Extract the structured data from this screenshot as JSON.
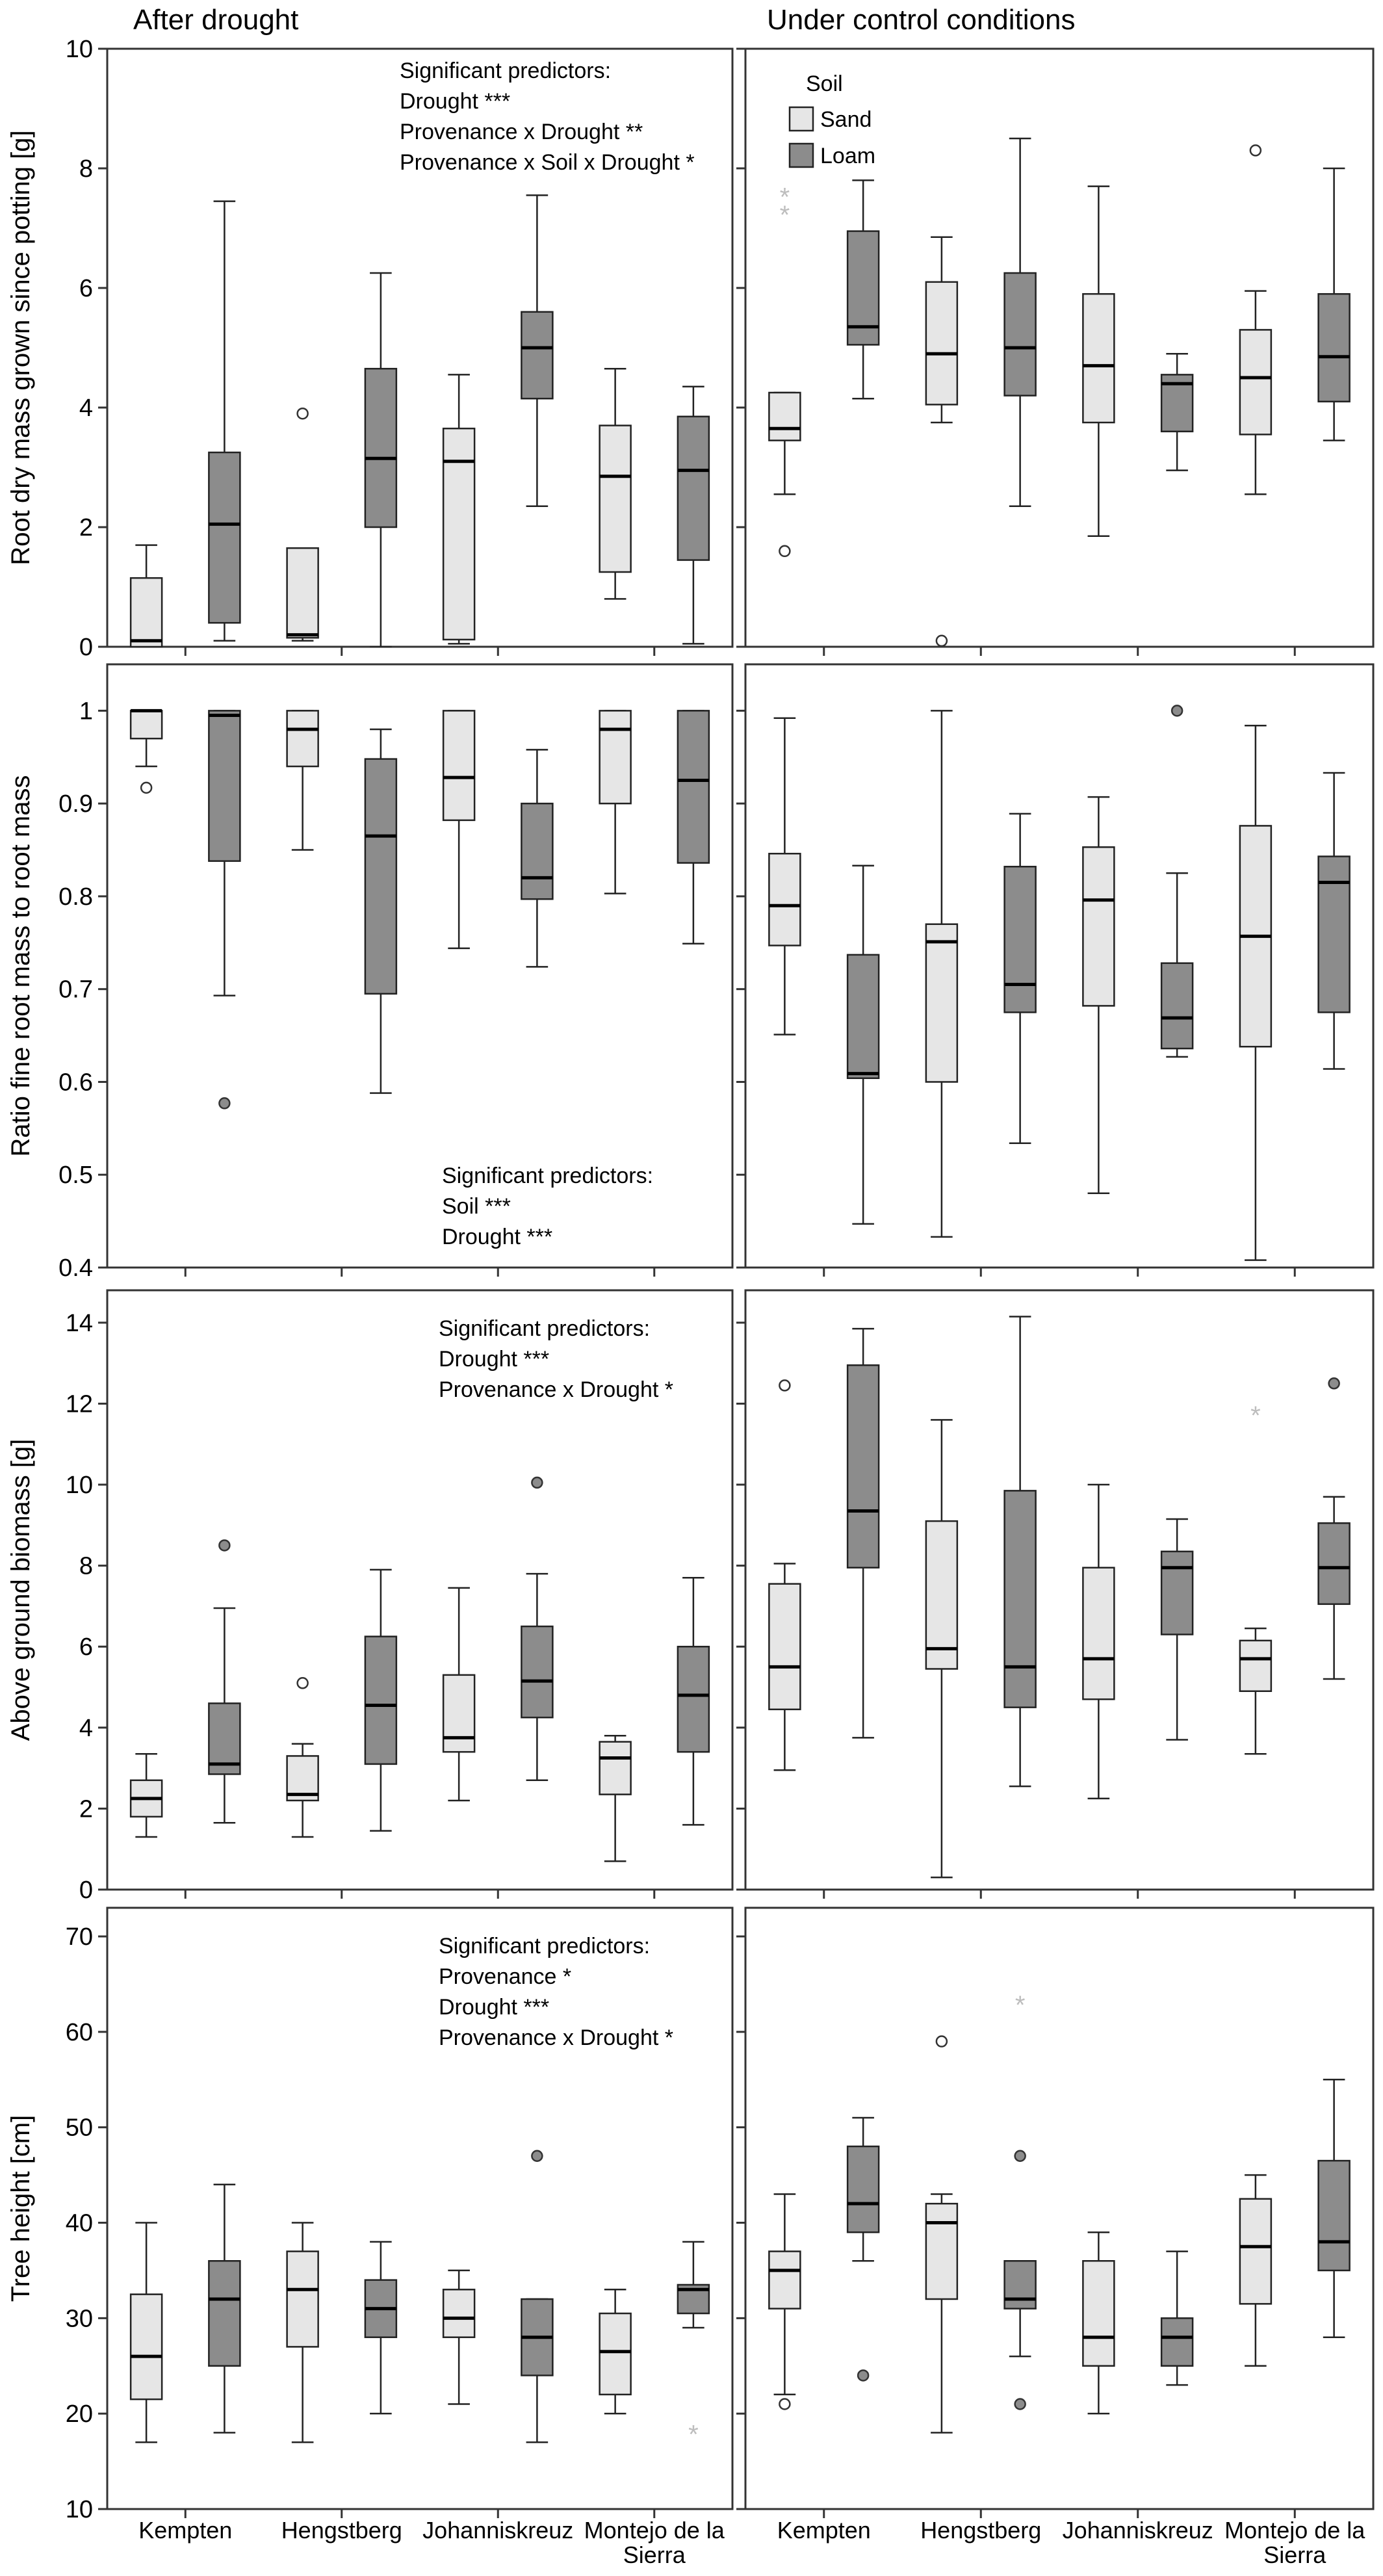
{
  "headers": {
    "left": "After drought",
    "right": "Under control conditions"
  },
  "legend": {
    "title": "Soil",
    "items": [
      {
        "label": "Sand",
        "color": "#e6e6e6"
      },
      {
        "label": "Loam",
        "color": "#8c8c8c"
      }
    ]
  },
  "categories": [
    "Kempten",
    "Hengstberg",
    "Johanniskreuz",
    "Montejo de la Sierra"
  ],
  "colors": {
    "sand": "#e6e6e6",
    "loam": "#8c8c8c",
    "frame": "#333333"
  },
  "chart_data": [
    {
      "type": "box",
      "ylabel": "Root dry mass grown since potting [g]",
      "ylim": [
        0,
        10
      ],
      "ticks": [
        0,
        2,
        4,
        6,
        8,
        10
      ],
      "annotations": [
        "Significant predictors:",
        "Drought ***",
        "Provenance x Drought **",
        "Provenance x Soil x Drought *"
      ],
      "annotation_panel": "drought",
      "drought": [
        [
          {
            "min": 0,
            "q1": 0,
            "med": 0.1,
            "q3": 1.15,
            "max": 1.7,
            "out": []
          },
          {
            "min": 0.1,
            "q1": 0.4,
            "med": 2.05,
            "q3": 3.25,
            "max": 7.45,
            "out": []
          }
        ],
        [
          {
            "min": 0.1,
            "q1": 0.15,
            "med": 0.2,
            "q3": 1.65,
            "max": 1.65,
            "out": [
              3.9
            ]
          },
          {
            "min": 0,
            "q1": 2,
            "med": 3.15,
            "q3": 4.65,
            "max": 6.25,
            "out": []
          }
        ],
        [
          {
            "min": 0.05,
            "q1": 0.12,
            "med": 3.1,
            "q3": 3.65,
            "max": 4.55,
            "out": []
          },
          {
            "min": 2.35,
            "q1": 4.15,
            "med": 5,
            "q3": 5.6,
            "max": 7.55,
            "out": []
          }
        ],
        [
          {
            "min": 0.8,
            "q1": 1.25,
            "med": 2.85,
            "q3": 3.7,
            "max": 4.65,
            "out": []
          },
          {
            "min": 0.05,
            "q1": 1.45,
            "med": 2.95,
            "q3": 3.85,
            "max": 4.35,
            "out": []
          }
        ]
      ],
      "control": [
        [
          {
            "min": 2.55,
            "q1": 3.45,
            "med": 3.65,
            "q3": 4.25,
            "max": 4.25,
            "out": [
              1.6
            ],
            "star": [
              7.25,
              7.55
            ]
          },
          {
            "min": 4.15,
            "q1": 5.05,
            "med": 5.35,
            "q3": 6.95,
            "max": 7.8,
            "out": []
          }
        ],
        [
          {
            "min": 3.75,
            "q1": 4.05,
            "med": 4.9,
            "q3": 6.1,
            "max": 6.85,
            "out": [
              0.1
            ]
          },
          {
            "min": 2.35,
            "q1": 4.2,
            "med": 5,
            "q3": 6.25,
            "max": 8.5,
            "out": []
          }
        ],
        [
          {
            "min": 1.85,
            "q1": 3.75,
            "med": 4.7,
            "q3": 5.9,
            "max": 7.7,
            "out": []
          },
          {
            "min": 2.95,
            "q1": 3.6,
            "med": 4.4,
            "q3": 4.55,
            "max": 4.9,
            "out": []
          }
        ],
        [
          {
            "min": 2.55,
            "q1": 3.55,
            "med": 4.5,
            "q3": 5.3,
            "max": 5.95,
            "out": [
              8.3
            ]
          },
          {
            "min": 3.45,
            "q1": 4.1,
            "med": 4.85,
            "q3": 5.9,
            "max": 8,
            "out": []
          }
        ]
      ]
    },
    {
      "type": "box",
      "ylabel": "Ratio fine root mass to root mass",
      "ylim": [
        0.4,
        1.05
      ],
      "ticks": [
        0.4,
        0.5,
        0.6,
        0.7,
        0.8,
        0.9,
        1
      ],
      "annotations": [
        "Significant predictors:",
        "Soil ***",
        "Drought ***"
      ],
      "annotation_panel": "drought",
      "drought": [
        [
          {
            "min": 0.94,
            "q1": 0.97,
            "med": 1,
            "q3": 1,
            "max": 1,
            "out": [
              0.917
            ]
          },
          {
            "min": 0.693,
            "q1": 0.838,
            "med": 0.995,
            "q3": 1,
            "max": 1,
            "out": [
              0.577
            ]
          }
        ],
        [
          {
            "min": 0.85,
            "q1": 0.94,
            "med": 0.98,
            "q3": 1,
            "max": 1,
            "out": []
          },
          {
            "min": 0.588,
            "q1": 0.695,
            "med": 0.865,
            "q3": 0.948,
            "max": 0.98,
            "out": []
          }
        ],
        [
          {
            "min": 0.744,
            "q1": 0.882,
            "med": 0.928,
            "q3": 1,
            "max": 1,
            "out": []
          },
          {
            "min": 0.724,
            "q1": 0.797,
            "med": 0.82,
            "q3": 0.9,
            "max": 0.958,
            "out": []
          }
        ],
        [
          {
            "min": 0.803,
            "q1": 0.9,
            "med": 0.98,
            "q3": 1,
            "max": 1,
            "out": []
          },
          {
            "min": 0.749,
            "q1": 0.836,
            "med": 0.925,
            "q3": 1,
            "max": 1,
            "out": []
          }
        ]
      ],
      "control": [
        [
          {
            "min": 0.651,
            "q1": 0.747,
            "med": 0.79,
            "q3": 0.846,
            "max": 0.992,
            "out": []
          },
          {
            "min": 0.447,
            "q1": 0.604,
            "med": 0.609,
            "q3": 0.737,
            "max": 0.833,
            "out": []
          }
        ],
        [
          {
            "min": 0.433,
            "q1": 0.6,
            "med": 0.751,
            "q3": 0.77,
            "max": 1,
            "out": []
          },
          {
            "min": 0.534,
            "q1": 0.675,
            "med": 0.705,
            "q3": 0.832,
            "max": 0.889,
            "out": []
          }
        ],
        [
          {
            "min": 0.48,
            "q1": 0.682,
            "med": 0.796,
            "q3": 0.853,
            "max": 0.907,
            "out": []
          },
          {
            "min": 0.627,
            "q1": 0.636,
            "med": 0.669,
            "q3": 0.728,
            "max": 0.825,
            "out": [
              1
            ]
          }
        ],
        [
          {
            "min": 0.408,
            "q1": 0.638,
            "med": 0.757,
            "q3": 0.876,
            "max": 0.984,
            "out": []
          },
          {
            "min": 0.614,
            "q1": 0.675,
            "med": 0.815,
            "q3": 0.843,
            "max": 0.933,
            "out": []
          }
        ]
      ]
    },
    {
      "type": "box",
      "ylabel": "Above ground biomass [g]",
      "ylim": [
        0,
        14.8
      ],
      "ticks": [
        0,
        2,
        4,
        6,
        8,
        10,
        12,
        14
      ],
      "annotations": [
        "Significant predictors:",
        "Drought ***",
        "Provenance x Drought *"
      ],
      "annotation_panel": "drought",
      "drought": [
        [
          {
            "min": 1.3,
            "q1": 1.8,
            "med": 2.25,
            "q3": 2.7,
            "max": 3.35,
            "out": []
          },
          {
            "min": 1.65,
            "q1": 2.85,
            "med": 3.1,
            "q3": 4.6,
            "max": 6.95,
            "out": [
              8.5
            ]
          }
        ],
        [
          {
            "min": 1.3,
            "q1": 2.2,
            "med": 2.35,
            "q3": 3.3,
            "max": 3.6,
            "out": [
              5.1
            ]
          },
          {
            "min": 1.45,
            "q1": 3.1,
            "med": 4.55,
            "q3": 6.25,
            "max": 7.9,
            "out": []
          }
        ],
        [
          {
            "min": 2.2,
            "q1": 3.4,
            "med": 3.75,
            "q3": 5.3,
            "max": 7.45,
            "out": []
          },
          {
            "min": 2.7,
            "q1": 4.25,
            "med": 5.15,
            "q3": 6.5,
            "max": 7.8,
            "out": [
              10.05
            ]
          }
        ],
        [
          {
            "min": 0.7,
            "q1": 2.35,
            "med": 3.25,
            "q3": 3.65,
            "max": 3.8,
            "out": []
          },
          {
            "min": 1.6,
            "q1": 3.4,
            "med": 4.8,
            "q3": 6,
            "max": 7.7,
            "out": []
          }
        ]
      ],
      "control": [
        [
          {
            "min": 2.95,
            "q1": 4.45,
            "med": 5.5,
            "q3": 7.55,
            "max": 8.05,
            "out": [
              12.45
            ]
          },
          {
            "min": 3.75,
            "q1": 7.95,
            "med": 9.35,
            "q3": 12.95,
            "max": 13.85,
            "out": []
          }
        ],
        [
          {
            "min": 0.3,
            "q1": 5.45,
            "med": 5.95,
            "q3": 9.1,
            "max": 11.6,
            "out": []
          },
          {
            "min": 2.55,
            "q1": 4.5,
            "med": 5.5,
            "q3": 9.85,
            "max": 14.15,
            "out": []
          }
        ],
        [
          {
            "min": 2.25,
            "q1": 4.7,
            "med": 5.7,
            "q3": 7.95,
            "max": 10,
            "out": []
          },
          {
            "min": 3.7,
            "q1": 6.3,
            "med": 7.95,
            "q3": 8.35,
            "max": 9.15,
            "out": []
          }
        ],
        [
          {
            "min": 3.35,
            "q1": 4.9,
            "med": 5.7,
            "q3": 6.15,
            "max": 6.45,
            "out": [],
            "star": [
              11.75
            ]
          },
          {
            "min": 5.2,
            "q1": 7.05,
            "med": 7.95,
            "q3": 9.05,
            "max": 9.7,
            "out": [
              12.5
            ]
          }
        ]
      ]
    },
    {
      "type": "box",
      "ylabel": "Tree height [cm]",
      "ylim": [
        10,
        73
      ],
      "ticks": [
        10,
        20,
        30,
        40,
        50,
        60,
        70
      ],
      "annotations": [
        "Significant predictors:",
        "Provenance *",
        "Drought ***",
        "Provenance x Drought *"
      ],
      "annotation_panel": "drought",
      "drought": [
        [
          {
            "min": 17,
            "q1": 21.5,
            "med": 26,
            "q3": 32.5,
            "max": 40,
            "out": []
          },
          {
            "min": 18,
            "q1": 25,
            "med": 32,
            "q3": 36,
            "max": 44,
            "out": []
          }
        ],
        [
          {
            "min": 17,
            "q1": 27,
            "med": 33,
            "q3": 37,
            "max": 40,
            "out": []
          },
          {
            "min": 20,
            "q1": 28,
            "med": 31,
            "q3": 34,
            "max": 38,
            "out": []
          }
        ],
        [
          {
            "min": 21,
            "q1": 28,
            "med": 30,
            "q3": 33,
            "max": 35,
            "out": []
          },
          {
            "min": 17,
            "q1": 24,
            "med": 28,
            "q3": 32,
            "max": 32,
            "out": [
              47
            ]
          }
        ],
        [
          {
            "min": 20,
            "q1": 22,
            "med": 26.5,
            "q3": 30.5,
            "max": 33,
            "out": []
          },
          {
            "min": 29,
            "q1": 30.5,
            "med": 33,
            "q3": 33.5,
            "max": 38,
            "out": [],
            "star": [
              18
            ]
          }
        ]
      ],
      "control": [
        [
          {
            "min": 22,
            "q1": 31,
            "med": 35,
            "q3": 37,
            "max": 43,
            "out": [
              21
            ]
          },
          {
            "min": 36,
            "q1": 39,
            "med": 42,
            "q3": 48,
            "max": 51,
            "out": [
              24
            ]
          }
        ],
        [
          {
            "min": 18,
            "q1": 32,
            "med": 40,
            "q3": 42,
            "max": 43,
            "out": [
              59
            ]
          },
          {
            "min": 26,
            "q1": 31,
            "med": 32,
            "q3": 36,
            "max": 36,
            "out": [
              47,
              21
            ],
            "star": [
              63
            ]
          }
        ],
        [
          {
            "min": 20,
            "q1": 25,
            "med": 28,
            "q3": 36,
            "max": 39,
            "out": []
          },
          {
            "min": 23,
            "q1": 25,
            "med": 28,
            "q3": 30,
            "max": 37,
            "out": []
          }
        ],
        [
          {
            "min": 25,
            "q1": 31.5,
            "med": 37.5,
            "q3": 42.5,
            "max": 45,
            "out": []
          },
          {
            "min": 28,
            "q1": 35,
            "med": 38,
            "q3": 46.5,
            "max": 55,
            "out": []
          }
        ]
      ]
    }
  ]
}
